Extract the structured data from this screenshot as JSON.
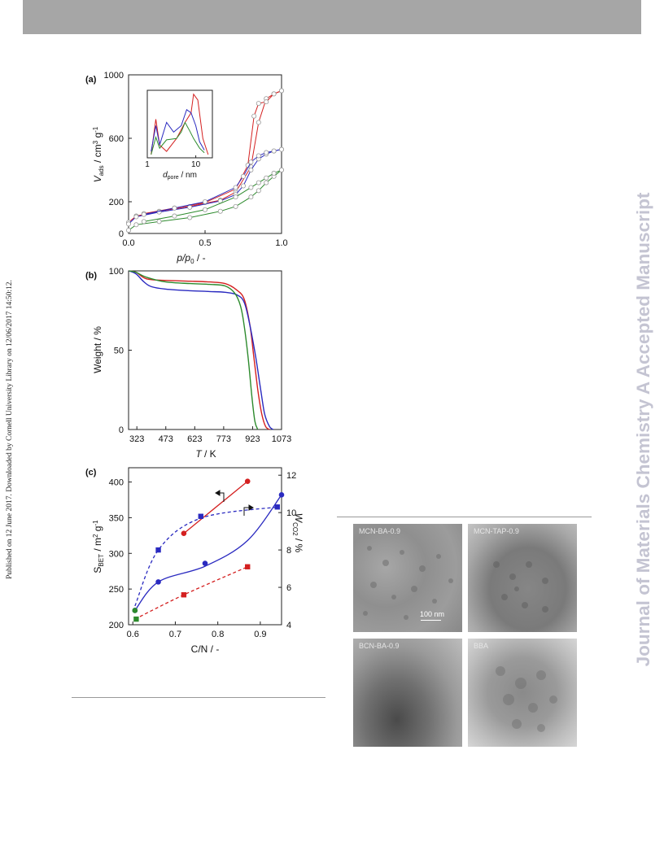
{
  "side_text": "Published on 12 June 2017. Downloaded by Cornell University Library on 12/06/2017 14:50:12.",
  "watermark": "Journal of Materials Chemistry A Accepted Manuscript",
  "colors": {
    "red": "#d42020",
    "blue": "#2a2ac0",
    "green": "#2c8a2c",
    "header": "#a6a6a6",
    "watermark": "#c4c4d2"
  },
  "chart_data": [
    {
      "panel": "(a)",
      "type": "line",
      "ylabel_main": "V",
      "ylabel_sub": "ads",
      "ylabel_units": " / cm",
      "ylabel_units2": " g",
      "xlabel_main": "p/p",
      "xlabel_sub": "0",
      "xlabel_tail": " / -",
      "xlim": [
        0,
        1
      ],
      "ylim": [
        0,
        1000
      ],
      "xticks": [
        "0.0",
        "0.5",
        "1.0"
      ],
      "yticks": [
        "0",
        "200",
        "600",
        "1000"
      ],
      "series": [
        {
          "color": "red",
          "adsorption": [
            [
              0.0,
              70
            ],
            [
              0.05,
              110
            ],
            [
              0.2,
              140
            ],
            [
              0.4,
              170
            ],
            [
              0.6,
              210
            ],
            [
              0.7,
              260
            ],
            [
              0.8,
              420
            ],
            [
              0.85,
              700
            ],
            [
              0.9,
              850
            ],
            [
              0.95,
              880
            ],
            [
              1.0,
              900
            ]
          ],
          "desorption": [
            [
              1.0,
              900
            ],
            [
              0.95,
              880
            ],
            [
              0.9,
              830
            ],
            [
              0.85,
              820
            ],
            [
              0.82,
              740
            ],
            [
              0.78,
              430
            ],
            [
              0.7,
              280
            ],
            [
              0.5,
              195
            ],
            [
              0.3,
              160
            ],
            [
              0.1,
              125
            ]
          ]
        },
        {
          "color": "blue",
          "adsorption": [
            [
              0.0,
              60
            ],
            [
              0.05,
              105
            ],
            [
              0.2,
              135
            ],
            [
              0.4,
              165
            ],
            [
              0.6,
              205
            ],
            [
              0.7,
              245
            ],
            [
              0.75,
              300
            ],
            [
              0.8,
              400
            ],
            [
              0.85,
              470
            ],
            [
              0.9,
              500
            ],
            [
              0.95,
              520
            ],
            [
              1.0,
              530
            ]
          ],
          "desorption": [
            [
              1.0,
              530
            ],
            [
              0.95,
              520
            ],
            [
              0.9,
              510
            ],
            [
              0.85,
              490
            ],
            [
              0.8,
              450
            ],
            [
              0.75,
              360
            ],
            [
              0.7,
              290
            ],
            [
              0.5,
              200
            ],
            [
              0.3,
              160
            ],
            [
              0.1,
              120
            ]
          ]
        },
        {
          "color": "green",
          "adsorption": [
            [
              0.0,
              20
            ],
            [
              0.05,
              55
            ],
            [
              0.2,
              75
            ],
            [
              0.4,
              100
            ],
            [
              0.6,
              140
            ],
            [
              0.7,
              170
            ],
            [
              0.8,
              230
            ],
            [
              0.85,
              270
            ],
            [
              0.9,
              320
            ],
            [
              0.95,
              360
            ],
            [
              1.0,
              400
            ]
          ],
          "desorption": [
            [
              1.0,
              400
            ],
            [
              0.95,
              380
            ],
            [
              0.9,
              350
            ],
            [
              0.85,
              320
            ],
            [
              0.8,
              290
            ],
            [
              0.7,
              230
            ],
            [
              0.5,
              150
            ],
            [
              0.3,
              110
            ],
            [
              0.1,
              75
            ]
          ]
        }
      ],
      "inset": {
        "xlabel_main": "d",
        "xlabel_sub": "pore",
        "xlabel_tail": " / nm",
        "xticks": [
          "1",
          "10"
        ],
        "series": [
          {
            "color": "red",
            "points": [
              [
                1.2,
                0.05
              ],
              [
                1.5,
                0.6
              ],
              [
                1.8,
                0.2
              ],
              [
                2.5,
                0.1
              ],
              [
                4,
                0.3
              ],
              [
                6,
                0.55
              ],
              [
                8,
                0.7
              ],
              [
                9,
                0.99
              ],
              [
                11,
                0.9
              ],
              [
                14,
                0.3
              ],
              [
                18,
                0.05
              ]
            ]
          },
          {
            "color": "blue",
            "points": [
              [
                1.2,
                0.1
              ],
              [
                1.5,
                0.5
              ],
              [
                1.8,
                0.2
              ],
              [
                2.5,
                0.55
              ],
              [
                3.5,
                0.4
              ],
              [
                5,
                0.5
              ],
              [
                6.5,
                0.75
              ],
              [
                8,
                0.7
              ],
              [
                10,
                0.5
              ],
              [
                12,
                0.25
              ],
              [
                15,
                0.12
              ]
            ]
          },
          {
            "color": "green",
            "points": [
              [
                1.2,
                0.05
              ],
              [
                1.5,
                0.32
              ],
              [
                1.8,
                0.15
              ],
              [
                2.5,
                0.28
              ],
              [
                4,
                0.3
              ],
              [
                5,
                0.4
              ],
              [
                6,
                0.55
              ],
              [
                7.5,
                0.42
              ],
              [
                9,
                0.3
              ],
              [
                12,
                0.15
              ],
              [
                15,
                0.08
              ]
            ]
          }
        ]
      }
    },
    {
      "panel": "(b)",
      "type": "line",
      "ylabel": "Weight / %",
      "xlabel_main": "T",
      "xlabel_tail": " / K",
      "xlim": [
        280,
        1073
      ],
      "ylim": [
        0,
        100
      ],
      "xticks": [
        "323",
        "473",
        "623",
        "773",
        "923",
        "1073"
      ],
      "yticks": [
        "0",
        "50",
        "100"
      ],
      "series": [
        {
          "color": "red",
          "points": [
            [
              283,
              100
            ],
            [
              320,
              99
            ],
            [
              373,
              95
            ],
            [
              473,
              94
            ],
            [
              600,
              93.5
            ],
            [
              700,
              93
            ],
            [
              780,
              92
            ],
            [
              840,
              88
            ],
            [
              880,
              82
            ],
            [
              910,
              65
            ],
            [
              930,
              45
            ],
            [
              950,
              25
            ],
            [
              970,
              10
            ],
            [
              990,
              2
            ],
            [
              1010,
              0
            ]
          ]
        },
        {
          "color": "blue",
          "points": [
            [
              283,
              100
            ],
            [
              320,
              98
            ],
            [
              360,
              93
            ],
            [
              400,
              90
            ],
            [
              473,
              88.5
            ],
            [
              600,
              87.5
            ],
            [
              700,
              87
            ],
            [
              780,
              86.5
            ],
            [
              840,
              85
            ],
            [
              880,
              80
            ],
            [
              910,
              65
            ],
            [
              940,
              45
            ],
            [
              965,
              25
            ],
            [
              985,
              10
            ],
            [
              1010,
              2
            ],
            [
              1030,
              0
            ]
          ]
        },
        {
          "color": "green",
          "points": [
            [
              283,
              100
            ],
            [
              320,
              99
            ],
            [
              373,
              96
            ],
            [
              473,
              93
            ],
            [
              600,
              92
            ],
            [
              700,
              91.5
            ],
            [
              780,
              90.5
            ],
            [
              830,
              86
            ],
            [
              860,
              78
            ],
            [
              880,
              65
            ],
            [
              900,
              45
            ],
            [
              920,
              20
            ],
            [
              935,
              5
            ],
            [
              950,
              0
            ]
          ]
        }
      ]
    },
    {
      "panel": "(c)",
      "type": "scatter",
      "ylabel_left_main": "S",
      "ylabel_left_sub": "BET",
      "ylabel_left_units": " / m",
      "ylabel_left_units2": " g",
      "ylabel_right_main": "W",
      "ylabel_right_sub": "CO2",
      "ylabel_right_tail": " / %",
      "xlabel": "C/N / -",
      "xlim": [
        0.59,
        0.95
      ],
      "ylim_left": [
        200,
        420
      ],
      "ylim_right": [
        4,
        12.4
      ],
      "xticks": [
        "0.6",
        "0.7",
        "0.8",
        "0.9"
      ],
      "yticks_left": [
        "200",
        "250",
        "300",
        "350",
        "400"
      ],
      "yticks_right": [
        "4",
        "6",
        "8",
        "10",
        "12"
      ],
      "series": [
        {
          "name": "",
          "color": "red",
          "marker": "circle",
          "axis": "left",
          "points": [
            [
              0.72,
              328
            ],
            [
              0.87,
              401
            ]
          ],
          "fit": [
            [
              0.72,
              328
            ],
            [
              0.87,
              401
            ]
          ]
        },
        {
          "name": "",
          "color": "blue",
          "marker": "circle",
          "axis": "left",
          "points": [
            [
              0.605,
              220
            ],
            [
              0.66,
              260
            ],
            [
              0.77,
              286
            ],
            [
              0.95,
              382
            ]
          ],
          "fit": [
            [
              0.605,
              220
            ],
            [
              0.66,
              260
            ],
            [
              0.77,
              282
            ],
            [
              0.87,
              318
            ],
            [
              0.95,
              382
            ]
          ]
        },
        {
          "name": "",
          "color": "blue",
          "marker": "square",
          "axis": "right",
          "points": [
            [
              0.66,
              8.0
            ],
            [
              0.76,
              9.8
            ],
            [
              0.94,
              10.3
            ]
          ],
          "fit": [
            [
              0.605,
              5
            ],
            [
              0.66,
              8.0
            ],
            [
              0.76,
              9.7
            ],
            [
              0.94,
              10.3
            ]
          ]
        },
        {
          "name": "",
          "color": "red",
          "marker": "square",
          "axis": "right",
          "points": [
            [
              0.72,
              5.6
            ],
            [
              0.87,
              7.1
            ]
          ],
          "fit": [
            [
              0.605,
              4.3
            ],
            [
              0.72,
              5.6
            ],
            [
              0.87,
              7.1
            ]
          ]
        },
        {
          "name": "",
          "color": "green",
          "marker": "circle",
          "axis": "left",
          "points": [
            [
              0.605,
              220
            ]
          ]
        },
        {
          "name": "",
          "color": "green",
          "marker": "square",
          "axis": "right",
          "points": [
            [
              0.608,
              4.3
            ]
          ]
        }
      ]
    }
  ],
  "tem_images": [
    {
      "label": "MCN-BA-0.9",
      "scale_label": "100 nm"
    },
    {
      "label": "MCN-TAP-0.9"
    },
    {
      "label": "BCN-BA-0.9"
    },
    {
      "label": "BBA"
    }
  ]
}
